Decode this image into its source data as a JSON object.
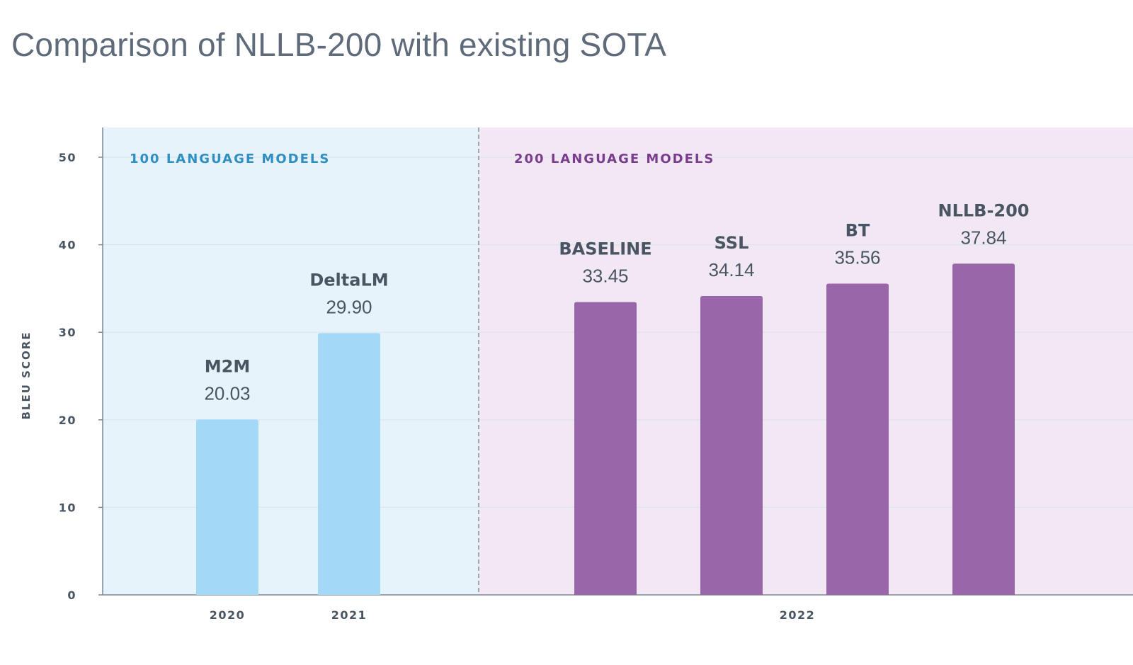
{
  "title": "Comparison of NLLB-200 with existing SOTA",
  "colors": {
    "group1_bar": "#a3d8f6",
    "group1_bg": "#e6f3fa",
    "group1_text": "#2f8fc4",
    "group2_bar": "#9966aa",
    "group2_bg": "#f1e8f4",
    "group2_text": "#7b3c8f",
    "axis": "#7d8896",
    "grid": "#dde3ea"
  },
  "chart_data": {
    "type": "bar",
    "ylabel": "BLEU SCORE",
    "xlabel": "",
    "ylim": [
      0,
      50
    ],
    "yticks": [
      0,
      10,
      20,
      30,
      40,
      50
    ],
    "grid": true,
    "groups": [
      {
        "label": "100 LANGUAGE MODELS",
        "year_labels": [
          "2020",
          "2021"
        ]
      },
      {
        "label": "200 LANGUAGE MODELS",
        "year_labels": [
          "2022"
        ]
      }
    ],
    "categories": [
      "M2M",
      "DeltaLM",
      "BASELINE",
      "SSL",
      "BT",
      "NLLB-200"
    ],
    "values": [
      20.03,
      29.9,
      33.45,
      34.14,
      35.56,
      37.84
    ],
    "value_labels": [
      "20.03",
      "29.90",
      "33.45",
      "34.14",
      "35.56",
      "37.84"
    ]
  }
}
